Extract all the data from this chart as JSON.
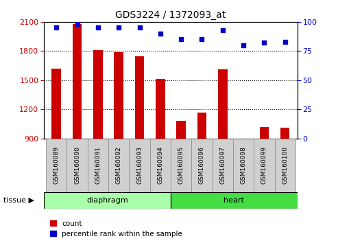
{
  "title": "GDS3224 / 1372093_at",
  "categories": [
    "GSM160089",
    "GSM160090",
    "GSM160091",
    "GSM160092",
    "GSM160093",
    "GSM160094",
    "GSM160095",
    "GSM160096",
    "GSM160097",
    "GSM160098",
    "GSM160099",
    "GSM160100"
  ],
  "counts": [
    1620,
    2075,
    1810,
    1790,
    1745,
    1510,
    1080,
    1165,
    1615,
    870,
    1020,
    1010
  ],
  "percentiles": [
    95,
    98,
    95,
    95,
    95,
    90,
    85,
    85,
    93,
    80,
    82,
    83
  ],
  "groups": [
    "diaphragm",
    "diaphragm",
    "diaphragm",
    "diaphragm",
    "diaphragm",
    "diaphragm",
    "heart",
    "heart",
    "heart",
    "heart",
    "heart",
    "heart"
  ],
  "diaphragm_color": "#AAFFAA",
  "heart_color": "#44DD44",
  "bar_color": "#CC0000",
  "dot_color": "#0000CC",
  "plot_bg": "#ffffff",
  "ylim_left": [
    900,
    2100
  ],
  "ylim_right": [
    0,
    100
  ],
  "yticks_left": [
    900,
    1200,
    1500,
    1800,
    2100
  ],
  "yticks_right": [
    0,
    25,
    50,
    75,
    100
  ],
  "xlabel_bg": "#d0d0d0",
  "legend_count_label": "count",
  "legend_pct_label": "percentile rank within the sample",
  "tissue_label": "tissue",
  "diaphragm_label": "diaphragm",
  "heart_label": "heart"
}
